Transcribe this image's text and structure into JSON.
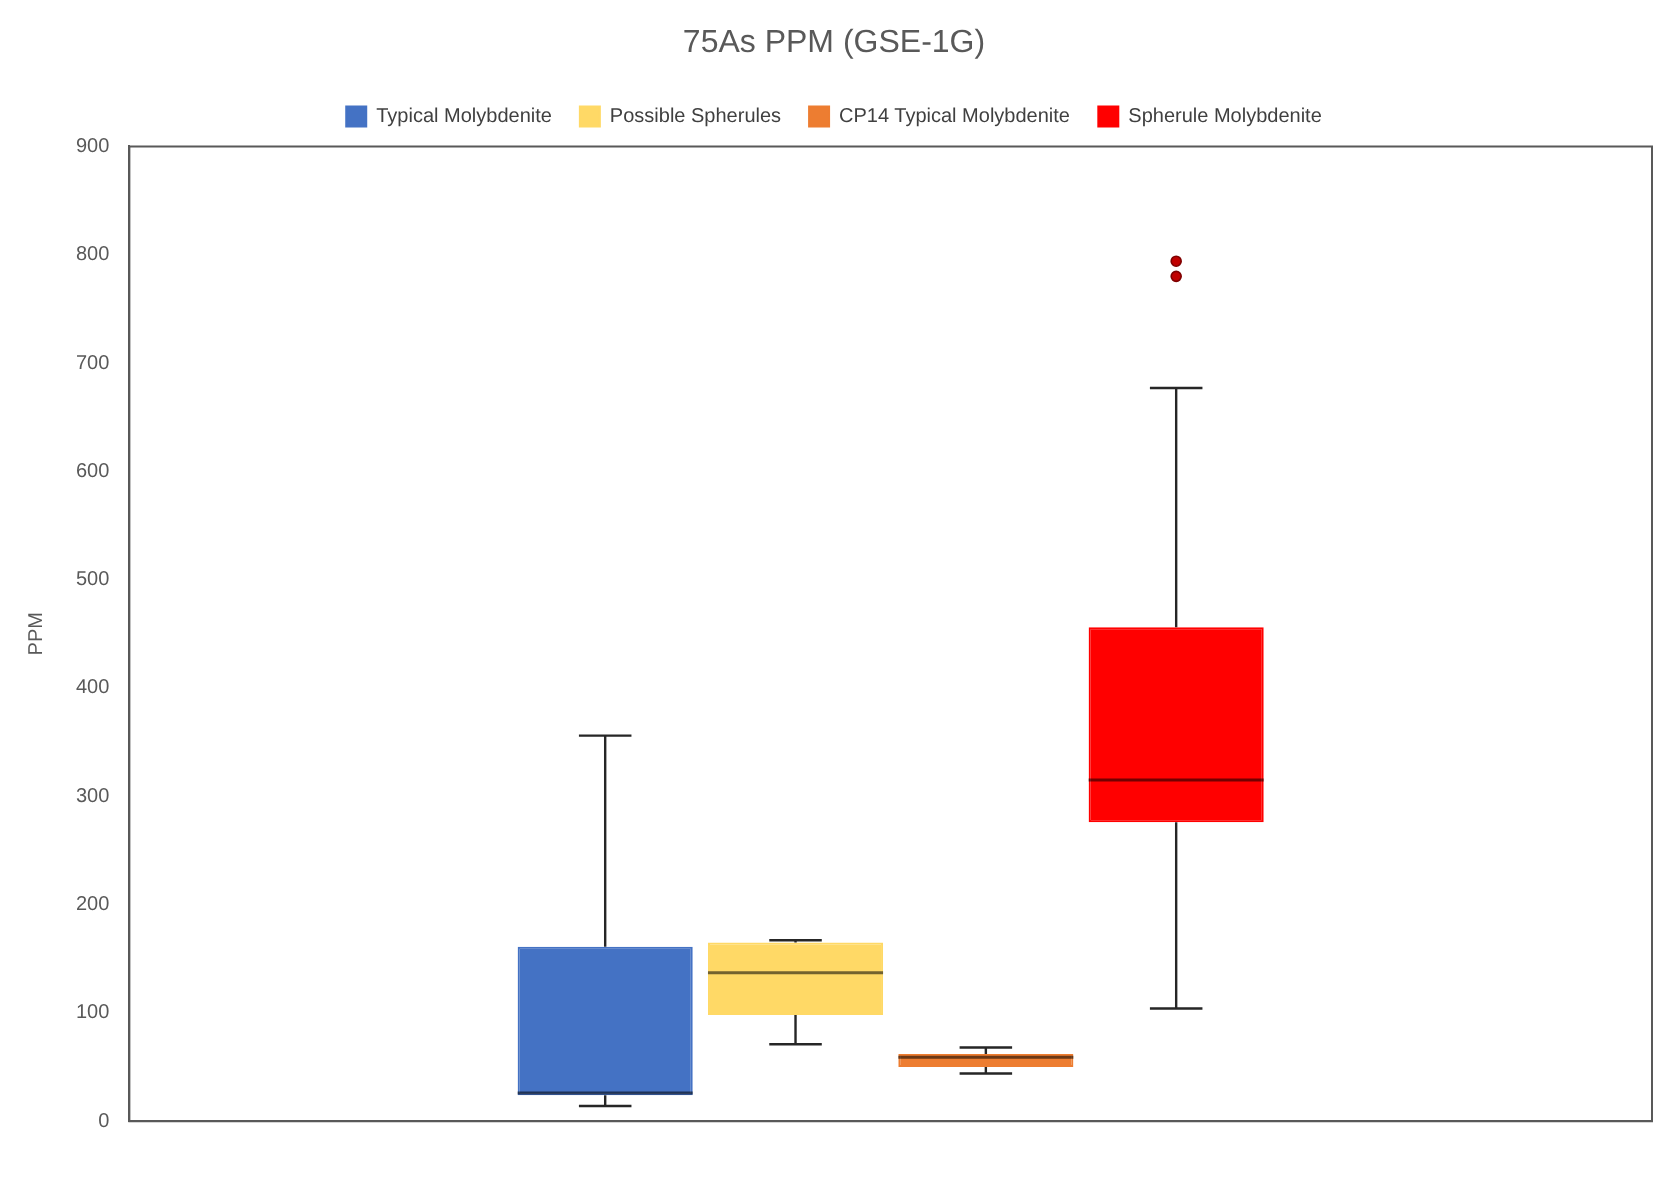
{
  "chart_data": {
    "type": "box",
    "title": "75As PPM (GSE-1G)",
    "ylabel": "PPM",
    "categories": [
      null
    ],
    "legend": "top",
    "grid": false,
    "ylim": [
      0,
      900
    ],
    "yticks": [
      0,
      100,
      200,
      300,
      400,
      500,
      600,
      700,
      800,
      900
    ],
    "series": [
      {
        "name": "Typical Molybdenite",
        "color": "#4472c4",
        "boxes": [
          {
            "low": 14,
            "q1": 24,
            "median": 26,
            "q3": 161,
            "high": 356
          }
        ]
      },
      {
        "name": "Possible Spherules",
        "color": "#ffd966",
        "boxes": [
          {
            "low": 71,
            "q1": 98,
            "median": 137,
            "q3": 165,
            "high": 167
          }
        ]
      },
      {
        "name": "CP14 Typical Molybdenite",
        "color": "#ed7d31",
        "boxes": [
          {
            "low": 44,
            "q1": 50,
            "median": 59,
            "q3": 62,
            "high": 68
          }
        ]
      },
      {
        "name": "Spherule Molybdenite",
        "color": "#ff0000",
        "boxes": [
          {
            "low": 104,
            "q1": 276,
            "median": 315,
            "q3": 456,
            "high": 677,
            "outliers": [
              780,
              794
            ]
          }
        ]
      }
    ]
  }
}
